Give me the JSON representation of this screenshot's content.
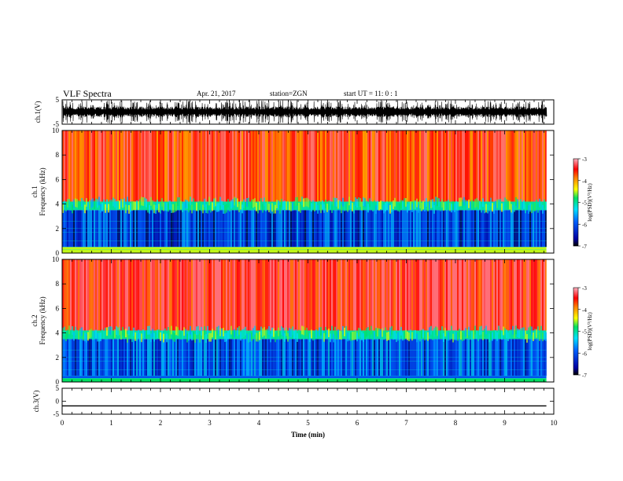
{
  "header": {
    "title": "VLF Spectra",
    "date": "Apr. 21, 2017",
    "station": "station=ZGN",
    "start": "start  UT =   11: 0   : 1"
  },
  "chart_data": [
    {
      "type": "line",
      "panel": "ch1-waveform",
      "ylabel": "ch.1(V)",
      "y_ticks": [
        "5",
        "-5"
      ],
      "ylim": [
        -5,
        5
      ],
      "xlim": [
        0,
        10
      ],
      "description_values": {
        "amplitude_range": [
          -5,
          5
        ],
        "signal_end_min": 9.85
      }
    },
    {
      "type": "heatmap",
      "panel": "ch1-spectrogram",
      "ylabel": "ch.1\nFrequency (kHz)",
      "ylabel_line1": "ch.1",
      "ylabel_line2": "Frequency (kHz)",
      "y_ticks": [
        "0",
        "2",
        "4",
        "6",
        "8",
        "10"
      ],
      "ylim": [
        0,
        10
      ],
      "xlim": [
        0,
        10
      ],
      "signal_end_min": 9.85,
      "colorbar": {
        "label": "log(PSD)(V²/Hz)",
        "ticks": [
          "-3",
          "-4",
          "-5",
          "-6",
          "-7"
        ],
        "range": [
          -7,
          -3
        ]
      },
      "bands": [
        {
          "from_khz": 0,
          "to_khz": 0.5,
          "log_psd": -4.5
        },
        {
          "from_khz": 0.5,
          "to_khz": 3.5,
          "log_psd": -6.2
        },
        {
          "from_khz": 3.5,
          "to_khz": 4.2,
          "log_psd": -5.0
        },
        {
          "from_khz": 4.2,
          "to_khz": 10,
          "log_psd": -3.6
        }
      ]
    },
    {
      "type": "heatmap",
      "panel": "ch2-spectrogram",
      "ylabel": "ch.2\nFrequency (kHz)",
      "ylabel_line1": "ch.2",
      "ylabel_line2": "Frequency (kHz)",
      "y_ticks": [
        "0",
        "2",
        "4",
        "6",
        "8",
        "10"
      ],
      "ylim": [
        0,
        10
      ],
      "xlim": [
        0,
        10
      ],
      "signal_end_min": 9.85,
      "colorbar": {
        "label": "log(PSD)(V²/Hz)",
        "ticks": [
          "-3",
          "-4",
          "-5",
          "-6",
          "-7"
        ],
        "range": [
          -7,
          -3
        ]
      },
      "bands": [
        {
          "from_khz": 0,
          "to_khz": 0.3,
          "log_psd": -4.8
        },
        {
          "from_khz": 0.3,
          "to_khz": 3.5,
          "log_psd": -6.0
        },
        {
          "from_khz": 3.5,
          "to_khz": 4.2,
          "log_psd": -5.0
        },
        {
          "from_khz": 4.2,
          "to_khz": 10,
          "log_psd": -3.4
        }
      ]
    },
    {
      "type": "line",
      "panel": "ch3-waveform",
      "ylabel": "ch.3(V)",
      "y_ticks": [
        "5",
        "0",
        "-5"
      ],
      "ylim": [
        -5,
        5
      ],
      "xlim": [
        0,
        10
      ],
      "x": [
        0,
        9.85
      ],
      "y": [
        -1.8,
        -1.8
      ],
      "xlabel": "Time (min)",
      "x_ticks": [
        "0",
        "1",
        "2",
        "3",
        "4",
        "5",
        "6",
        "7",
        "8",
        "9",
        "10"
      ]
    }
  ]
}
